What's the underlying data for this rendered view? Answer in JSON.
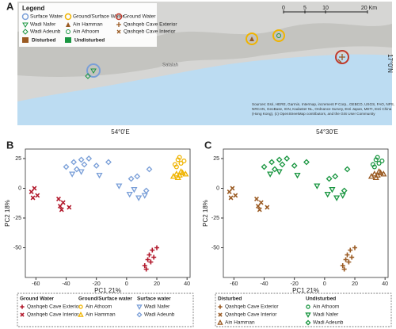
{
  "map": {
    "panel_label": "A",
    "legend_title": "Legend",
    "categories": [
      "Surface Water",
      "Ground/Surface Water",
      "Ground Water"
    ],
    "sites": [
      "Wadi Nafer",
      "Ain Hamman",
      "Qashqeb Cave Exterior",
      "Wadi Adeunb",
      "Ain Athoom",
      "Qashqeb Cave Interior"
    ],
    "status": [
      "Disturbed",
      "Undisturbed"
    ],
    "scale": [
      0,
      5,
      10,
      "20 Km"
    ],
    "place": "Salalah",
    "lon_labels": [
      "54°0'E",
      "54°30'E"
    ],
    "lat_label": "17°0'N",
    "attribution": [
      "Sources: Esri, HERE, Garmin, Intermap, increment P Corp., GEBCO, USGS, FAO, NPS,",
      "NRCAN, GeoBase, IGN, Kadaster NL, Ordnance Survey, Esri Japan, METI, Esri China",
      "(Hong Kong), (c) OpenStreetMap contributors, and the GIS User Community"
    ]
  },
  "chart_data": [
    {
      "type": "scatter",
      "panel_label": "B",
      "xlabel": "PC1 21%",
      "ylabel": "PC2 18%",
      "xlim": [
        -67,
        42
      ],
      "ylim": [
        -75,
        33
      ],
      "xticks": [
        -60,
        -40,
        -20,
        0,
        20,
        40
      ],
      "yticks": [
        -50,
        -25,
        0,
        25
      ],
      "grid": false,
      "legend_groups": [
        "Ground Water",
        "Ground/Surface water",
        "Surface water"
      ],
      "series": [
        {
          "name": "Qashqeb Cave Exterior",
          "group": "Ground Water",
          "color": "#b2182b",
          "marker": "plus",
          "x": [
            12,
            14,
            15,
            17,
            18,
            20,
            13,
            16
          ],
          "values": [
            -65,
            -60,
            -56,
            -52,
            -58,
            -50,
            -68,
            -62
          ]
        },
        {
          "name": "Qashqeb Cave Interior",
          "group": "Ground Water",
          "color": "#b2182b",
          "marker": "cross",
          "x": [
            -63,
            -61,
            -59,
            -62,
            -45,
            -44,
            -42,
            -38,
            -43
          ],
          "values": [
            -3,
            0,
            -6,
            -8,
            -9,
            -15,
            -12,
            -16,
            -18
          ]
        },
        {
          "name": "Ain Athoom",
          "group": "Ground/Surface water",
          "color": "#f0b400",
          "marker": "circle",
          "x": [
            32,
            34,
            35,
            36,
            38,
            33
          ],
          "values": [
            20,
            24,
            26,
            21,
            23,
            18
          ]
        },
        {
          "name": "Ain Hamman",
          "group": "Ground/Surface water",
          "color": "#f0b400",
          "marker": "triangle",
          "x": [
            31,
            33,
            35,
            37,
            39,
            34,
            36
          ],
          "values": [
            10,
            12,
            11,
            13,
            12,
            9,
            14
          ]
        },
        {
          "name": "Wadi Nafer",
          "group": "Surface water",
          "color": "#7a9fd8",
          "marker": "triangle-down",
          "x": [
            -30,
            -18,
            -5,
            2,
            8,
            12,
            -36,
            5
          ],
          "values": [
            14,
            11,
            2,
            -5,
            -8,
            -6,
            12,
            -1
          ]
        },
        {
          "name": "Wadi Adeunb",
          "group": "Surface water",
          "color": "#7a9fd8",
          "marker": "diamond",
          "x": [
            -40,
            -35,
            -33,
            -28,
            -25,
            -20,
            -12,
            3,
            7,
            15,
            -30,
            13
          ],
          "values": [
            18,
            22,
            16,
            20,
            25,
            19,
            22,
            8,
            10,
            16,
            24,
            -2
          ]
        }
      ]
    },
    {
      "type": "scatter",
      "panel_label": "C",
      "xlabel": "PC1 21%",
      "ylabel": "PC2 18%",
      "xlim": [
        -67,
        42
      ],
      "ylim": [
        -75,
        33
      ],
      "xticks": [
        -60,
        -40,
        -20,
        0,
        20,
        40
      ],
      "yticks": [
        -50,
        -25,
        0,
        25
      ],
      "grid": false,
      "legend_groups": [
        "Disturbed",
        "Undisturbed"
      ],
      "series": [
        {
          "name": "Qashqeb Cave Exterior",
          "group": "Disturbed",
          "color": "#9a5a22",
          "marker": "plus",
          "x": [
            12,
            14,
            15,
            17,
            18,
            20,
            13,
            16
          ],
          "values": [
            -65,
            -60,
            -56,
            -52,
            -58,
            -50,
            -68,
            -62
          ]
        },
        {
          "name": "Qashqeb Cave Interior",
          "group": "Disturbed",
          "color": "#9a5a22",
          "marker": "cross",
          "x": [
            -63,
            -61,
            -59,
            -62,
            -45,
            -44,
            -42,
            -38,
            -43
          ],
          "values": [
            -3,
            0,
            -6,
            -8,
            -9,
            -15,
            -12,
            -16,
            -18
          ]
        },
        {
          "name": "Ain Hamman",
          "group": "Disturbed",
          "color": "#9a5a22",
          "marker": "triangle",
          "x": [
            31,
            33,
            35,
            37,
            39,
            34,
            36
          ],
          "values": [
            10,
            12,
            11,
            13,
            12,
            9,
            14
          ]
        },
        {
          "name": "Ain Athoom",
          "group": "Undisturbed",
          "color": "#1a9641",
          "marker": "circle",
          "x": [
            32,
            34,
            35,
            36,
            38,
            33
          ],
          "values": [
            20,
            24,
            26,
            21,
            23,
            18
          ]
        },
        {
          "name": "Wadi Nafer",
          "group": "Undisturbed",
          "color": "#1a9641",
          "marker": "triangle-down",
          "x": [
            -30,
            -18,
            -5,
            2,
            8,
            12,
            -36,
            5
          ],
          "values": [
            14,
            11,
            2,
            -5,
            -8,
            -6,
            12,
            -1
          ]
        },
        {
          "name": "Wadi Adeunb",
          "group": "Undisturbed",
          "color": "#1a9641",
          "marker": "diamond",
          "x": [
            -40,
            -35,
            -33,
            -28,
            -25,
            -20,
            -12,
            3,
            7,
            15,
            -30,
            13
          ],
          "values": [
            18,
            22,
            16,
            20,
            25,
            19,
            22,
            8,
            10,
            16,
            24,
            -2
          ]
        }
      ]
    }
  ]
}
